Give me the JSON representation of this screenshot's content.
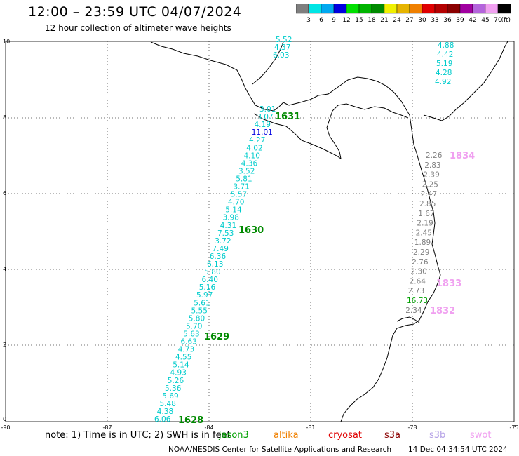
{
  "title": "12:00 – 23:59 UTC 04/07/2024",
  "subtitle": "12 hour collection of altimeter wave heights",
  "legend": {
    "colors": [
      "#7f7f7f",
      "#00e5e5",
      "#00a8f0",
      "#0000e0",
      "#00e000",
      "#00b400",
      "#008a00",
      "#f0f000",
      "#e6b400",
      "#f08000",
      "#e00000",
      "#b40000",
      "#8b0000",
      "#a000a0",
      "#b464dc",
      "#f0a0f0",
      "#000000"
    ],
    "labels": [
      "3",
      "6",
      "9",
      "12",
      "15",
      "18",
      "21",
      "24",
      "27",
      "30",
      "33",
      "36",
      "39",
      "42",
      "45",
      "70"
    ],
    "unit": "(ft)"
  },
  "axes": {
    "x_labels": [
      "-90",
      "-87",
      "-84",
      "-81",
      "-78",
      "-75"
    ],
    "y_labels": [
      "10",
      "8",
      "6",
      "4",
      "2",
      "0"
    ]
  },
  "tracks": [
    {
      "name": "jason3",
      "color": "#00cccc",
      "values": [
        "6.06",
        "4.38",
        "5.48",
        "5.69",
        "5.36",
        "5.26",
        "4.93",
        "5.14",
        "4.55",
        "4.73",
        "6.63",
        "5.63",
        "5.70",
        "5.80",
        "5.55",
        "5.61",
        "5.97",
        "5.16",
        "6.40",
        "5.80",
        "6.13",
        "6.36",
        "7.49",
        "3.72",
        "7.53",
        "4.31",
        "3.98",
        "5.14",
        "4.70",
        "5.57",
        "3.71",
        "5.81",
        "3.52",
        "4.36",
        "4.10",
        "4.02",
        "4.27",
        "11.01",
        "4.19",
        "3.07",
        "3.01"
      ]
    },
    {
      "name": "cryosat-north",
      "color": "#00cccc",
      "values": [
        "5.52",
        "4.37",
        "6.03"
      ]
    },
    {
      "name": "north-east",
      "color": "#00cccc",
      "values": [
        "4.88",
        "4.42",
        "5.19",
        "4.28",
        "4.92"
      ]
    },
    {
      "name": "coastal",
      "color": "#808080",
      "values": [
        "2.26",
        "2.83",
        "2.39",
        "2.25",
        "2.47",
        "2.85",
        "1.67",
        "2.19",
        "2.45",
        "1.89",
        "2.29",
        "2.76",
        "2.30",
        "2.64",
        "2.73",
        "16.73",
        "2.34"
      ]
    }
  ],
  "time_labels": [
    "1628",
    "1629",
    "1630",
    "1631",
    "1834",
    "1833",
    "1832"
  ],
  "note": "note: 1) Time is in UTC; 2) SWH is in feet",
  "satellites": [
    {
      "name": "jason3",
      "color": "#00a000"
    },
    {
      "name": "altika",
      "color": "#f08000"
    },
    {
      "name": "cryosat",
      "color": "#e00000"
    },
    {
      "name": "s3a",
      "color": "#8b0000"
    },
    {
      "name": "s3b",
      "color": "#b4a0e6"
    },
    {
      "name": "swot",
      "color": "#f0a0f0"
    }
  ],
  "credit": "NOAA/NESDIS Center for Satellite Applications and Research",
  "timestamp": "14 Dec 04:34:54 UTC 2024"
}
